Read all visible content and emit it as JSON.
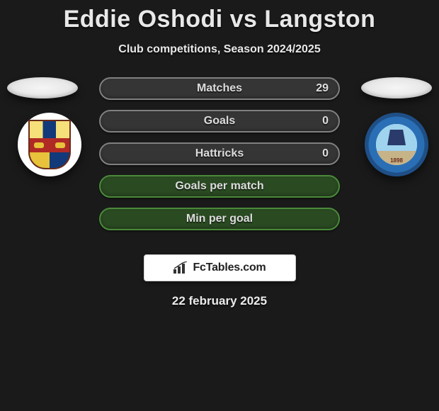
{
  "title": "Eddie Oshodi vs Langston",
  "subtitle": "Club competitions, Season 2024/2025",
  "date": "22 february 2025",
  "brand": "FcTables.com",
  "colors": {
    "background": "#1a1a1a",
    "title": "#e8e8e8",
    "pill_border": "#808080",
    "pill_fill": "#353535",
    "pill_border_green": "#4a8a3a",
    "pill_fill_green": "#2a4a22"
  },
  "stats": [
    {
      "label": "Matches",
      "value": "29",
      "style": "normal"
    },
    {
      "label": "Goals",
      "value": "0",
      "style": "normal"
    },
    {
      "label": "Hattricks",
      "value": "0",
      "style": "normal"
    },
    {
      "label": "Goals per match",
      "value": "",
      "style": "green"
    },
    {
      "label": "Min per goal",
      "value": "",
      "style": "green"
    }
  ],
  "badge_left_alt": "Wealdstone crest",
  "badge_right_alt": "Braintree Town F.C. The Iron 1898 crest"
}
